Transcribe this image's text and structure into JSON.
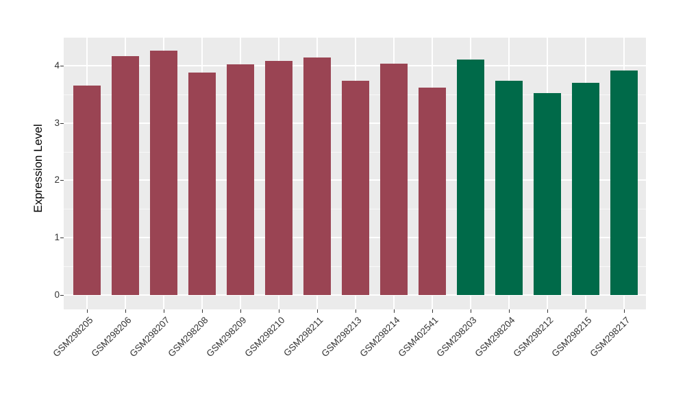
{
  "figure": {
    "background": "#ffffff",
    "panel_background": "#ebebeb",
    "grid_color": "#ffffff",
    "tick_color": "#333333",
    "axis_text_color": "#333333"
  },
  "chart_data": {
    "type": "bar",
    "title": "",
    "xlabel": "",
    "ylabel": "Expression Level",
    "categories": [
      "GSM298205",
      "GSM298206",
      "GSM298207",
      "GSM298208",
      "GSM298209",
      "GSM298210",
      "GSM298211",
      "GSM298213",
      "GSM298214",
      "GSM402541",
      "GSM298203",
      "GSM298204",
      "GSM298212",
      "GSM298215",
      "GSM298217"
    ],
    "values": [
      3.65,
      4.16,
      4.26,
      3.88,
      4.02,
      4.08,
      4.14,
      3.74,
      4.03,
      3.62,
      4.1,
      3.74,
      3.52,
      3.7,
      3.91
    ],
    "groups": [
      "group1",
      "group1",
      "group1",
      "group1",
      "group1",
      "group1",
      "group1",
      "group1",
      "group1",
      "group1",
      "group2",
      "group2",
      "group2",
      "group2",
      "group2"
    ],
    "group_colors": {
      "group1": "#9a4453",
      "group2": "#006a49"
    },
    "yticks": [
      0,
      1,
      2,
      3,
      4
    ],
    "yticks_minor": [
      0.5,
      1.5,
      2.5,
      3.5
    ],
    "ylim": [
      -0.21,
      4.49
    ],
    "grid": true,
    "legend_position": "none"
  }
}
